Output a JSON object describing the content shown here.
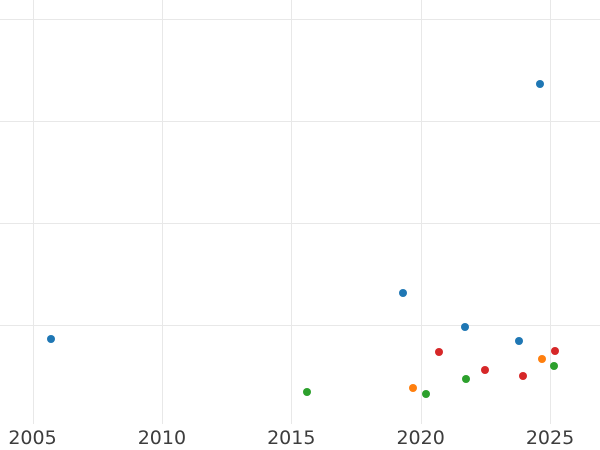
{
  "chart_data": {
    "type": "scatter",
    "title": "",
    "xlabel": "",
    "ylabel": "",
    "grid": true,
    "legend_position": "none",
    "background_color": "#ffffff",
    "grid_color": "#e8e8e8",
    "tick_label_color": "#3d3d3d",
    "xlim": [
      2003.7,
      2026.9
    ],
    "ylim": [
      0.0,
      4.2
    ],
    "y_axis_labels_visible": false,
    "y_gridline_values": [
      1,
      2,
      3,
      4
    ],
    "x_ticks": [
      {
        "value": 2005,
        "label": "2005"
      },
      {
        "value": 2010,
        "label": "2010"
      },
      {
        "value": 2015,
        "label": "2015"
      },
      {
        "value": 2020,
        "label": "2020"
      },
      {
        "value": 2025,
        "label": "2025"
      }
    ],
    "series": [
      {
        "name": "series-blue",
        "color": "#1f77b4",
        "points": [
          {
            "x": 2005.7,
            "y": 0.86
          },
          {
            "x": 2019.3,
            "y": 1.31
          },
          {
            "x": 2021.7,
            "y": 0.98
          },
          {
            "x": 2023.8,
            "y": 0.84
          },
          {
            "x": 2024.6,
            "y": 3.36
          }
        ]
      },
      {
        "name": "series-orange",
        "color": "#ff7f0e",
        "points": [
          {
            "x": 2019.7,
            "y": 0.38
          },
          {
            "x": 2024.7,
            "y": 0.67
          }
        ]
      },
      {
        "name": "series-green",
        "color": "#2ca02c",
        "points": [
          {
            "x": 2015.6,
            "y": 0.34
          },
          {
            "x": 2020.2,
            "y": 0.32
          },
          {
            "x": 2021.75,
            "y": 0.47
          },
          {
            "x": 2025.15,
            "y": 0.6
          }
        ]
      },
      {
        "name": "series-red",
        "color": "#d62728",
        "points": [
          {
            "x": 2020.7,
            "y": 0.74
          },
          {
            "x": 2022.5,
            "y": 0.56
          },
          {
            "x": 2023.95,
            "y": 0.5
          },
          {
            "x": 2025.2,
            "y": 0.75
          }
        ]
      }
    ]
  }
}
